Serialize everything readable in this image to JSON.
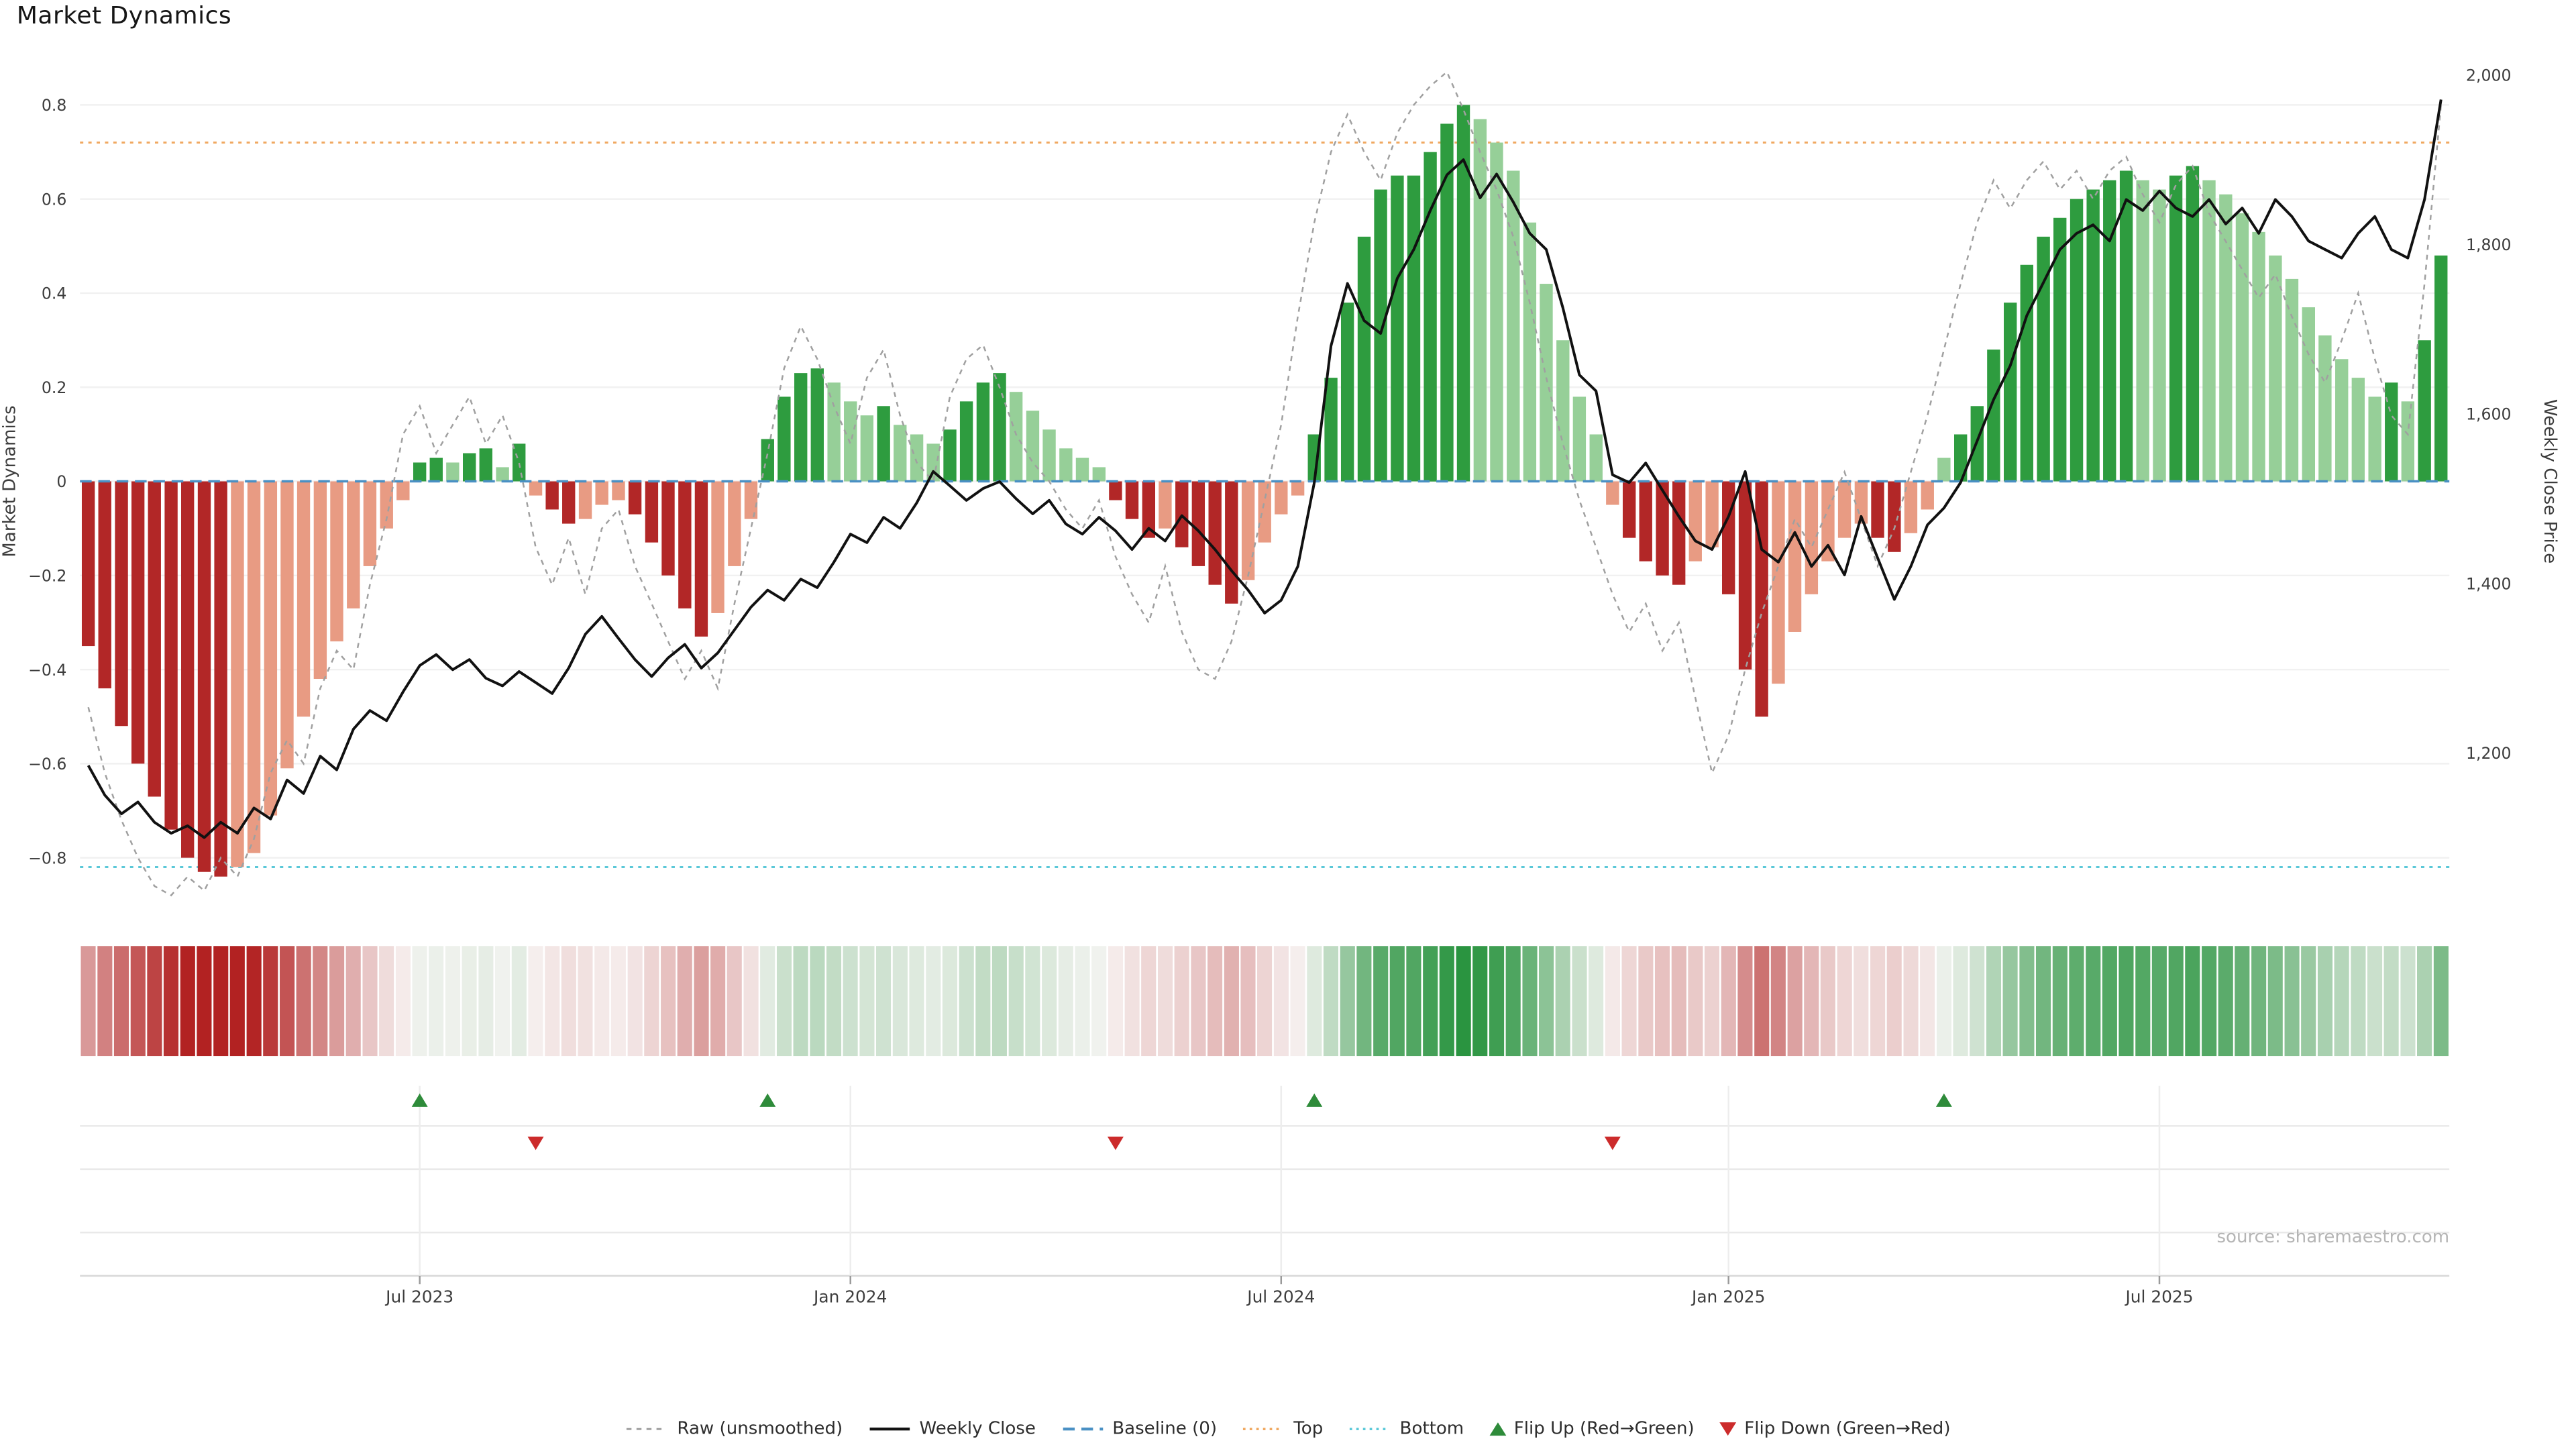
{
  "title": "Market Dynamics",
  "source_note": "source: sharemaestro.com",
  "axes": {
    "left_label": "Market Dynamics",
    "right_label": "Weekly Close Price",
    "left_ticks": [
      {
        "v": 0.8,
        "label": "0.8"
      },
      {
        "v": 0.6,
        "label": "0.6"
      },
      {
        "v": 0.4,
        "label": "0.4"
      },
      {
        "v": 0.2,
        "label": "0.2"
      },
      {
        "v": 0.0,
        "label": "0"
      },
      {
        "v": -0.2,
        "label": "−0.2"
      },
      {
        "v": -0.4,
        "label": "−0.4"
      },
      {
        "v": -0.6,
        "label": "−0.6"
      },
      {
        "v": -0.8,
        "label": "−0.8"
      }
    ],
    "right_ticks": [
      {
        "v": 2000,
        "label": "2,000"
      },
      {
        "v": 1800,
        "label": "1,800"
      },
      {
        "v": 1600,
        "label": "1,600"
      },
      {
        "v": 1400,
        "label": "1,400"
      },
      {
        "v": 1200,
        "label": "1,200"
      }
    ],
    "x_ticks": [
      {
        "index": 20,
        "label": "Jul 2023"
      },
      {
        "index": 46,
        "label": "Jan 2024"
      },
      {
        "index": 72,
        "label": "Jul 2024"
      },
      {
        "index": 99,
        "label": "Jan 2025"
      },
      {
        "index": 125,
        "label": "Jul 2025"
      }
    ]
  },
  "chart_data": {
    "type": "bar",
    "description": "Weekly market-dynamics oscillator (bars, left axis) with raw unsmoothed overlay (dashed) and weekly close price (solid line, right axis); heatmap ribbon and regime-flip markers below.",
    "start_date": "2023-02-13",
    "frequency": "weekly",
    "n_points": 143,
    "ylim_left": [
      -0.92,
      0.92
    ],
    "ylim_right": [
      1100,
      2000
    ],
    "reference_lines": {
      "baseline": 0,
      "top": 0.72,
      "bottom": -0.82
    },
    "flip_up_indices": [
      20,
      41,
      74,
      112
    ],
    "flip_up_dates": [
      "2023-07-03",
      "2023-11-27",
      "2024-07-15",
      "2025-04-07"
    ],
    "flip_down_indices": [
      27,
      62,
      92
    ],
    "flip_down_dates": [
      "2023-08-21",
      "2024-04-22",
      "2024-11-18"
    ],
    "series": [
      {
        "name": "Market Dynamics (smoothed bars)",
        "kind": "bar",
        "axis": "left",
        "values": [
          -0.35,
          -0.44,
          -0.52,
          -0.6,
          -0.67,
          -0.74,
          -0.8,
          -0.83,
          -0.84,
          -0.82,
          -0.79,
          -0.71,
          -0.61,
          -0.5,
          -0.42,
          -0.34,
          -0.27,
          -0.18,
          -0.1,
          -0.04,
          0.04,
          0.05,
          0.04,
          0.06,
          0.07,
          0.03,
          0.08,
          -0.03,
          -0.06,
          -0.09,
          -0.08,
          -0.05,
          -0.04,
          -0.07,
          -0.13,
          -0.2,
          -0.27,
          -0.33,
          -0.28,
          -0.18,
          -0.08,
          0.09,
          0.18,
          0.23,
          0.24,
          0.21,
          0.17,
          0.14,
          0.16,
          0.12,
          0.1,
          0.08,
          0.11,
          0.17,
          0.21,
          0.23,
          0.19,
          0.15,
          0.11,
          0.07,
          0.05,
          0.03,
          -0.04,
          -0.08,
          -0.12,
          -0.1,
          -0.14,
          -0.18,
          -0.22,
          -0.26,
          -0.21,
          -0.13,
          -0.07,
          -0.03,
          0.1,
          0.22,
          0.38,
          0.52,
          0.62,
          0.65,
          0.65,
          0.7,
          0.76,
          0.8,
          0.77,
          0.72,
          0.66,
          0.55,
          0.42,
          0.3,
          0.18,
          0.1,
          -0.05,
          -0.12,
          -0.17,
          -0.2,
          -0.22,
          -0.17,
          -0.14,
          -0.24,
          -0.4,
          -0.5,
          -0.43,
          -0.32,
          -0.24,
          -0.17,
          -0.12,
          -0.09,
          -0.12,
          -0.15,
          -0.11,
          -0.06,
          0.05,
          0.1,
          0.16,
          0.28,
          0.38,
          0.46,
          0.52,
          0.56,
          0.6,
          0.62,
          0.64,
          0.66,
          0.64,
          0.62,
          0.65,
          0.67,
          0.64,
          0.61,
          0.57,
          0.53,
          0.48,
          0.43,
          0.37,
          0.31,
          0.26,
          0.22,
          0.18,
          0.21,
          0.17,
          0.3,
          0.48
        ]
      },
      {
        "name": "Raw (unsmoothed)",
        "kind": "line",
        "style": "dashed",
        "axis": "left",
        "values": [
          -0.48,
          -0.62,
          -0.72,
          -0.8,
          -0.86,
          -0.88,
          -0.84,
          -0.87,
          -0.8,
          -0.84,
          -0.76,
          -0.62,
          -0.55,
          -0.6,
          -0.44,
          -0.36,
          -0.4,
          -0.22,
          -0.08,
          0.1,
          0.16,
          0.06,
          0.12,
          0.18,
          0.08,
          0.14,
          0.04,
          -0.14,
          -0.22,
          -0.12,
          -0.24,
          -0.1,
          -0.06,
          -0.18,
          -0.26,
          -0.34,
          -0.42,
          -0.36,
          -0.44,
          -0.26,
          -0.1,
          0.06,
          0.24,
          0.33,
          0.26,
          0.16,
          0.08,
          0.22,
          0.28,
          0.14,
          0.04,
          0.0,
          0.18,
          0.26,
          0.29,
          0.2,
          0.1,
          0.04,
          0.0,
          -0.06,
          -0.1,
          -0.04,
          -0.16,
          -0.24,
          -0.3,
          -0.18,
          -0.32,
          -0.4,
          -0.42,
          -0.34,
          -0.2,
          -0.04,
          0.12,
          0.35,
          0.55,
          0.7,
          0.78,
          0.7,
          0.64,
          0.74,
          0.8,
          0.84,
          0.87,
          0.79,
          0.7,
          0.62,
          0.52,
          0.38,
          0.22,
          0.08,
          -0.04,
          -0.14,
          -0.24,
          -0.32,
          -0.26,
          -0.36,
          -0.3,
          -0.46,
          -0.62,
          -0.54,
          -0.4,
          -0.28,
          -0.18,
          -0.08,
          -0.14,
          -0.06,
          0.02,
          -0.08,
          -0.18,
          -0.1,
          0.02,
          0.14,
          0.28,
          0.42,
          0.55,
          0.64,
          0.58,
          0.64,
          0.68,
          0.62,
          0.66,
          0.6,
          0.66,
          0.69,
          0.61,
          0.55,
          0.63,
          0.67,
          0.57,
          0.51,
          0.45,
          0.39,
          0.44,
          0.35,
          0.27,
          0.21,
          0.3,
          0.4,
          0.26,
          0.14,
          0.1,
          0.42,
          0.8
        ]
      },
      {
        "name": "Weekly Close",
        "kind": "line",
        "style": "solid",
        "axis": "right",
        "values": [
          1185,
          1150,
          1128,
          1142,
          1118,
          1105,
          1114,
          1100,
          1118,
          1105,
          1135,
          1122,
          1168,
          1152,
          1196,
          1180,
          1228,
          1250,
          1238,
          1272,
          1303,
          1316,
          1298,
          1310,
          1288,
          1279,
          1296,
          1283,
          1270,
          1300,
          1340,
          1361,
          1335,
          1310,
          1290,
          1312,
          1328,
          1300,
          1318,
          1345,
          1372,
          1392,
          1380,
          1405,
          1395,
          1425,
          1458,
          1448,
          1478,
          1465,
          1495,
          1532,
          1515,
          1498,
          1512,
          1520,
          1500,
          1482,
          1498,
          1470,
          1458,
          1478,
          1462,
          1440,
          1465,
          1450,
          1480,
          1462,
          1440,
          1415,
          1392,
          1365,
          1380,
          1420,
          1519,
          1680,
          1754,
          1710,
          1695,
          1760,
          1794,
          1840,
          1882,
          1900,
          1855,
          1883,
          1850,
          1813,
          1794,
          1725,
          1646,
          1627,
          1528,
          1519,
          1542,
          1510,
          1479,
          1450,
          1440,
          1479,
          1532,
          1440,
          1425,
          1460,
          1420,
          1445,
          1410,
          1479,
          1430,
          1381,
          1420,
          1469,
          1489,
          1519,
          1568,
          1617,
          1657,
          1716,
          1755,
          1794,
          1813,
          1823,
          1804,
          1853,
          1840,
          1863,
          1843,
          1833,
          1853,
          1824,
          1843,
          1813,
          1853,
          1833,
          1804,
          1794,
          1784,
          1813,
          1833,
          1794,
          1784,
          1853,
          1971
        ]
      }
    ]
  },
  "legend": {
    "items": [
      {
        "label": "Raw (unsmoothed)"
      },
      {
        "label": "Weekly Close"
      },
      {
        "label": "Baseline (0)"
      },
      {
        "label": "Top"
      },
      {
        "label": "Bottom"
      },
      {
        "label": "Flip Up (Red→Green)"
      },
      {
        "label": "Flip Down (Green→Red)"
      }
    ]
  },
  "colors": {
    "red_strong": "#b22727",
    "red_weak": "#e89b83",
    "green_strong": "#2e9c3f",
    "green_weak": "#96cf98",
    "close": "#111111",
    "raw": "#a0a0a0",
    "baseline": "#4a90c4",
    "top": "#f0a860",
    "bottom": "#5bc8d8",
    "flip_up": "#2e8b3a",
    "flip_down": "#cc2b2b",
    "heat_green": "#2a9440",
    "heat_red": "#b22222",
    "heat_base": "#f8f6f5"
  }
}
